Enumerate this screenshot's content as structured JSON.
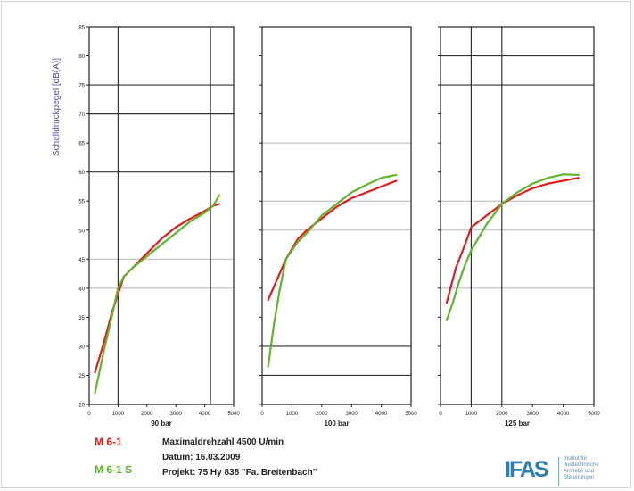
{
  "colors": {
    "series_red": "#e8191a",
    "series_green": "#5db52a",
    "y_label": "#4d4da6",
    "logo": "#2f7eb0"
  },
  "chart_data": [
    {
      "type": "line",
      "xlabel": "90 bar",
      "ylabel": "Schalldruckpegel [dB(A)]",
      "xlim": [
        0,
        5000
      ],
      "ylim": [
        20,
        85
      ],
      "xticks": [
        0,
        1000,
        2000,
        3000,
        4000,
        5000
      ],
      "yticks": [
        20,
        25,
        30,
        35,
        40,
        45,
        50,
        55,
        60,
        65,
        70,
        75,
        80,
        85
      ],
      "ytick_labels": [
        "20",
        "25",
        "30",
        "35",
        "40",
        "45",
        "50",
        "55",
        "60",
        "65",
        "70",
        "75",
        "80",
        "85"
      ],
      "grid_x": [
        1000,
        4200
      ],
      "grid_y_dark": [
        60,
        70,
        75
      ],
      "grid_y_light": [
        40,
        45
      ],
      "series": [
        {
          "name": "M 6-1",
          "color": "#e8191a",
          "x": [
            200,
            500,
            800,
            1000,
            1200,
            1500,
            2000,
            2500,
            3000,
            3500,
            4000,
            4300,
            4500
          ],
          "y": [
            25.5,
            30.5,
            36,
            39,
            42,
            43.5,
            46,
            48.5,
            50.5,
            52,
            53.3,
            54.2,
            54.5
          ]
        },
        {
          "name": "M 6-1 S",
          "color": "#5db52a",
          "x": [
            200,
            500,
            800,
            1000,
            1200,
            1500,
            2000,
            2500,
            3000,
            3500,
            4000,
            4300,
            4500
          ],
          "y": [
            22,
            29,
            35.5,
            40,
            42,
            43.5,
            45.5,
            47.5,
            49.5,
            51.5,
            53,
            54.2,
            56
          ]
        }
      ]
    },
    {
      "type": "line",
      "xlabel": "100 bar",
      "ylabel": "",
      "xlim": [
        0,
        5000
      ],
      "ylim": [
        20,
        85
      ],
      "xticks": [
        0,
        1000,
        2000,
        3000,
        4000,
        5000
      ],
      "yticks": [
        20,
        25,
        30,
        35,
        40,
        45,
        50,
        55,
        60,
        65,
        70,
        75,
        80,
        85
      ],
      "grid_x": [],
      "grid_y_dark": [
        25,
        30
      ],
      "grid_y_light": [
        50,
        55,
        65
      ],
      "series": [
        {
          "name": "M 6-1",
          "color": "#e8191a",
          "x": [
            200,
            500,
            800,
            1200,
            1500,
            2000,
            2500,
            3000,
            3500,
            4000,
            4500
          ],
          "y": [
            38,
            41.5,
            45,
            48.5,
            50,
            52,
            54,
            55.5,
            56.5,
            57.5,
            58.5
          ]
        },
        {
          "name": "M 6-1 S",
          "color": "#5db52a",
          "x": [
            200,
            400,
            600,
            800,
            1200,
            1500,
            2000,
            2500,
            3000,
            3500,
            4000,
            4500
          ],
          "y": [
            26.5,
            34,
            40,
            45,
            48,
            49.5,
            52.5,
            54.5,
            56.5,
            57.8,
            59,
            59.5
          ]
        }
      ]
    },
    {
      "type": "line",
      "xlabel": "125 bar",
      "ylabel": "",
      "xlim": [
        0,
        5000
      ],
      "ylim": [
        20,
        85
      ],
      "xticks": [
        0,
        1000,
        2000,
        3000,
        4000,
        5000
      ],
      "yticks": [
        20,
        25,
        30,
        35,
        40,
        45,
        50,
        55,
        60,
        65,
        70,
        75,
        80,
        85
      ],
      "grid_x": [
        1000,
        2000
      ],
      "grid_y_dark": [
        75,
        80
      ],
      "grid_y_light": [
        40,
        50,
        55
      ],
      "series": [
        {
          "name": "M 6-1",
          "color": "#e8191a",
          "x": [
            200,
            500,
            800,
            1000,
            1500,
            2000,
            2500,
            3000,
            3500,
            4000,
            4500
          ],
          "y": [
            37.5,
            43.5,
            47.5,
            50.5,
            52.5,
            54.5,
            56,
            57.2,
            58,
            58.5,
            59
          ]
        },
        {
          "name": "M 6-1 S",
          "color": "#5db52a",
          "x": [
            200,
            400,
            600,
            800,
            1000,
            1500,
            2000,
            2500,
            3000,
            3500,
            4000,
            4500
          ],
          "y": [
            34.5,
            37.5,
            41,
            44,
            46.5,
            51,
            54.5,
            56.5,
            58,
            59,
            59.6,
            59.5
          ]
        }
      ]
    }
  ],
  "legend": {
    "red_label": "M 6-1",
    "green_label": "M 6-1 S"
  },
  "info": {
    "line1": "Maximaldrehzahl 4500 U/min",
    "line2": "Datum: 16.03.2009",
    "line3": "Projekt: 75 Hy 838 \"Fa. Breitenbach\""
  },
  "logo": {
    "mark": "IFAS",
    "text": [
      "Institut für",
      "fluidtechnische",
      "Antriebe und",
      "Steuerungen"
    ]
  }
}
